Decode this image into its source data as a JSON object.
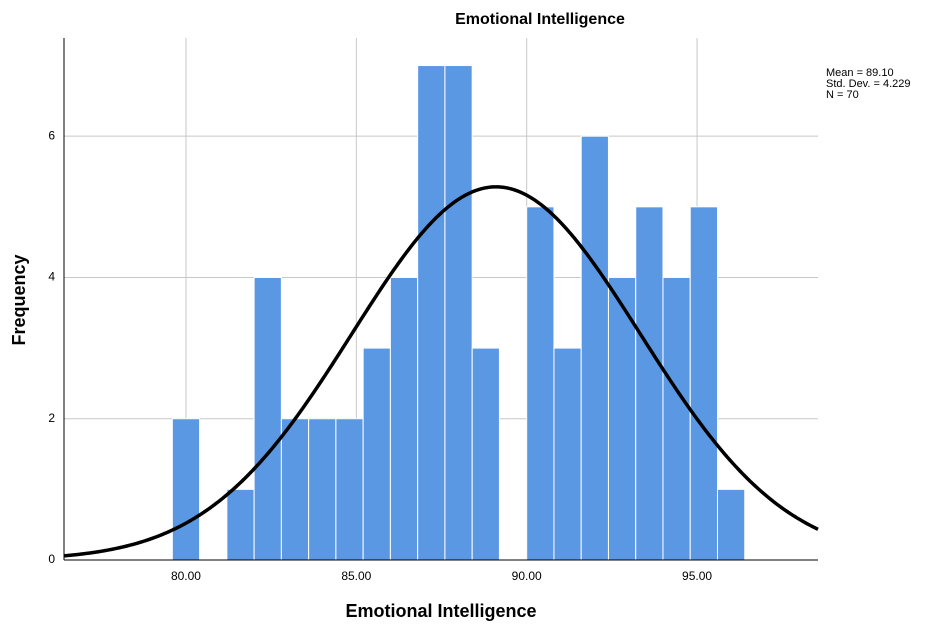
{
  "chart_data": {
    "type": "histogram",
    "title": "Emotional Intelligence",
    "x_label": "Emotional Intelligence",
    "y_label": "Frequency",
    "bins": [
      79.6,
      80.4,
      81.2,
      82.0,
      82.8,
      83.6,
      84.4,
      85.2,
      86.0,
      86.8,
      87.6,
      88.4,
      89.2,
      90.0,
      90.8,
      91.6,
      92.4,
      93.2,
      94.0,
      94.8,
      95.6,
      96.4
    ],
    "values": [
      2,
      0,
      1,
      4,
      2,
      2,
      2,
      3,
      4,
      7,
      7,
      3,
      0,
      5,
      3,
      6,
      4,
      5,
      4,
      5,
      1
    ],
    "color": "#5b98e4",
    "xlim": [
      76.42,
      98.55
    ],
    "ylim": [
      0,
      7.39
    ],
    "xticks": [
      {
        "value": 80,
        "label": "80.00"
      },
      {
        "value": 85,
        "label": "85.00"
      },
      {
        "value": 90,
        "label": "90.00"
      },
      {
        "value": 95,
        "label": "95.00"
      }
    ],
    "yticks": [
      0,
      2,
      4,
      6
    ],
    "grid": true,
    "annotations": [
      "Mean = 89.10",
      "Std. Dev. = 4.229",
      "N = 70"
    ],
    "normal_curve": {
      "mean": 89.1,
      "std_dev": 4.229,
      "n": 70,
      "color": "#000000"
    }
  }
}
